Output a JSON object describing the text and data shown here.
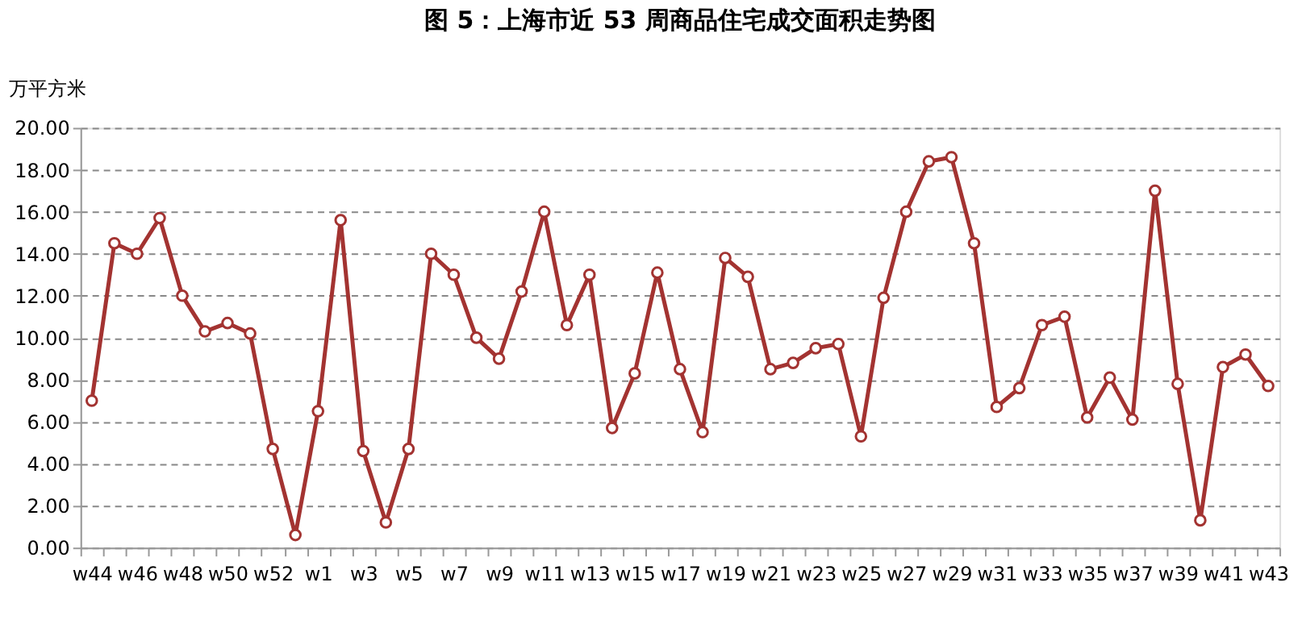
{
  "chart_data": {
    "type": "line",
    "title": "图 5：上海市近 53 周商品住宅成交面积走势图",
    "ylabel": "万平方米",
    "categories": [
      "w44",
      null,
      "w46",
      null,
      "w48",
      null,
      "w50",
      null,
      "w52",
      null,
      "w1",
      null,
      "w3",
      null,
      "w5",
      null,
      "w7",
      null,
      "w9",
      null,
      "w11",
      null,
      "w13",
      null,
      "w15",
      null,
      "w17",
      null,
      "w19",
      null,
      "w21",
      null,
      "w23",
      null,
      "w25",
      null,
      "w27",
      null,
      "w29",
      null,
      "w31",
      null,
      "w33",
      null,
      "w35",
      null,
      "w37",
      null,
      "w39",
      null,
      "w41",
      null,
      "w43"
    ],
    "series": [
      {
        "color": "#a33331",
        "values": [
          7.0,
          14.5,
          14.0,
          15.7,
          12.0,
          10.3,
          10.7,
          10.2,
          4.7,
          0.6,
          6.5,
          15.6,
          4.6,
          1.2,
          4.7,
          14.0,
          13.0,
          10.0,
          9.0,
          12.2,
          16.0,
          10.6,
          13.0,
          5.7,
          8.3,
          13.1,
          8.5,
          5.5,
          13.8,
          12.9,
          8.5,
          8.8,
          9.5,
          9.7,
          5.3,
          11.9,
          16.0,
          18.4,
          18.6,
          14.5,
          6.7,
          7.6,
          10.6,
          11.0,
          6.2,
          8.1,
          6.1,
          17.0,
          7.8,
          1.3,
          8.6,
          9.2,
          7.7
        ]
      }
    ],
    "ylim": [
      0,
      20
    ],
    "yticks": [
      {
        "value": 0,
        "label": "0.00"
      },
      {
        "value": 2,
        "label": "2.00"
      },
      {
        "value": 4,
        "label": "4.00"
      },
      {
        "value": 6,
        "label": "6.00"
      },
      {
        "value": 8,
        "label": "8.00"
      },
      {
        "value": 10,
        "label": "10.00"
      },
      {
        "value": 12,
        "label": "12.00"
      },
      {
        "value": 14,
        "label": "14.00"
      },
      {
        "value": 16,
        "label": "16.00"
      },
      {
        "value": 18,
        "label": "18.00"
      },
      {
        "value": 20,
        "label": "20.00"
      }
    ],
    "grid": "y",
    "marker": "circle",
    "line_style": "solid"
  }
}
